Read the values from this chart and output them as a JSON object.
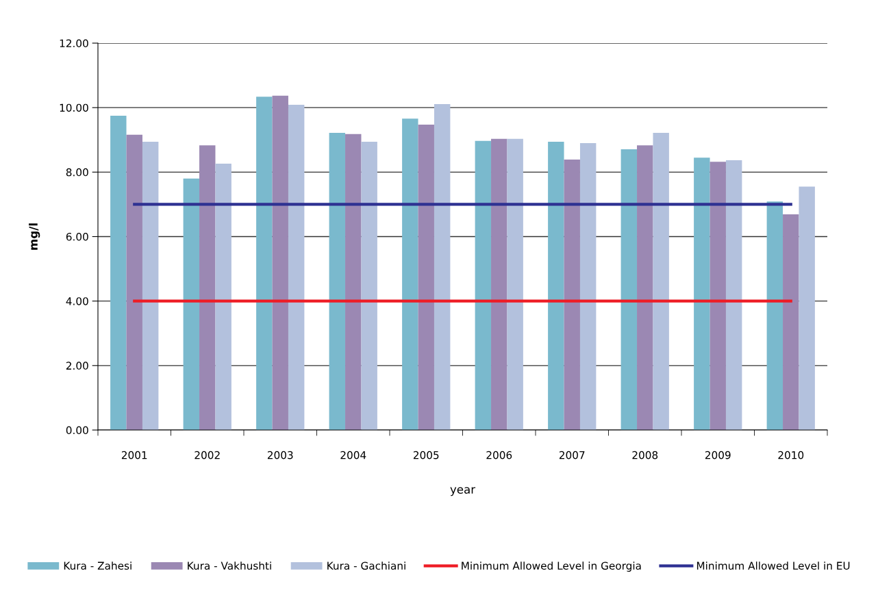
{
  "chart_data": {
    "type": "bar",
    "xlabel": "year",
    "ylabel": "mg/l",
    "categories": [
      "2001",
      "2002",
      "2003",
      "2004",
      "2005",
      "2006",
      "2007",
      "2008",
      "2009",
      "2010"
    ],
    "series": [
      {
        "name": "Kura - Zahesi",
        "color": "#7ab9cd",
        "values": [
          9.75,
          7.8,
          10.34,
          9.22,
          9.66,
          8.97,
          8.94,
          8.71,
          8.45,
          7.09
        ]
      },
      {
        "name": "Kura - Vakhushti",
        "color": "#9b88b3",
        "values": [
          9.16,
          8.83,
          10.37,
          9.18,
          9.47,
          9.03,
          8.39,
          8.83,
          8.32,
          6.69
        ]
      },
      {
        "name": "Kura - Gachiani",
        "color": "#b3c1dd",
        "values": [
          8.94,
          8.26,
          10.09,
          8.94,
          10.11,
          9.03,
          8.9,
          9.22,
          8.37,
          7.55
        ]
      },
      {
        "name": "Minimum Allowed Level in Georgia",
        "type": "line",
        "color": "#ee1c25",
        "values": [
          4,
          4,
          4,
          4,
          4,
          4,
          4,
          4,
          4,
          4
        ]
      },
      {
        "name": "Minimum Allowed Level in EU",
        "type": "line",
        "color": "#2e3192",
        "values": [
          7,
          7,
          7,
          7,
          7,
          7,
          7,
          7,
          7,
          7
        ]
      }
    ],
    "ylim": [
      0,
      12
    ],
    "yticks": [
      {
        "value": 0,
        "label": "0.00"
      },
      {
        "value": 2,
        "label": "2.00"
      },
      {
        "value": 4,
        "label": "4.00"
      },
      {
        "value": 6,
        "label": "6.00"
      },
      {
        "value": 8,
        "label": "8.00"
      },
      {
        "value": 10,
        "label": "10.00"
      },
      {
        "value": 12,
        "label": "12.00"
      }
    ],
    "grid": "y",
    "legend": "bottom"
  }
}
